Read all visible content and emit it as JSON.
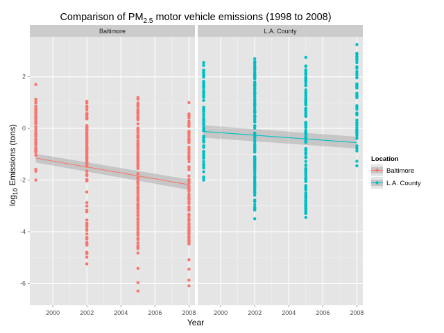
{
  "chart_data": {
    "type": "scatter",
    "title_prefix": "Comparison of PM",
    "title_subscript": "2.5",
    "title_suffix": " motor vehicle emissions (1998 to 2008)",
    "xlabel": "Year",
    "ylabel_prefix": "log",
    "ylabel_subscript": "10",
    "ylabel_suffix": " Emissions (tons)",
    "xlim": [
      1998.65,
      2008.35
    ],
    "ylim": [
      -6.85,
      3.55
    ],
    "x_ticks": [
      2000,
      2002,
      2004,
      2006,
      2008
    ],
    "x_tick_labels": [
      "2000",
      "2002",
      "2004",
      "2006",
      "2008"
    ],
    "y_ticks": [
      -6,
      -4,
      -2,
      0,
      2
    ],
    "y_tick_labels": [
      "-6",
      "-4",
      "-2",
      "0",
      "2"
    ],
    "grid": true,
    "legend": {
      "title": "Location",
      "position": "right",
      "entries": [
        {
          "label": "Baltimore",
          "color": "#F8766D"
        },
        {
          "label": "L.A. County",
          "color": "#00BFC4"
        }
      ]
    },
    "facets": [
      {
        "label": "Baltimore",
        "color": "#F8766D",
        "series": [
          {
            "x": 1999,
            "y_min": -2.0,
            "y_max": 1.7,
            "dense_min": -1.3,
            "dense_max": 1.05,
            "n": 42
          },
          {
            "x": 2002,
            "y_min": -5.25,
            "y_max": 1.05,
            "dense_min": -2.05,
            "dense_max": 1.0,
            "n": 80,
            "extra": [
              [
                -5.0,
                -3.5
              ]
            ]
          },
          {
            "x": 2005,
            "y_min": -6.3,
            "y_max": 1.2,
            "dense_min": -4.8,
            "dense_max": 1.0,
            "n": 120
          },
          {
            "x": 2008,
            "y_min": -6.1,
            "y_max": 1.0,
            "dense_min": -4.5,
            "dense_max": 0.6,
            "n": 100
          }
        ],
        "trend": {
          "x": [
            1999,
            2008
          ],
          "y": [
            -1.15,
            -2.18
          ],
          "ci_upper": [
            -0.98,
            -1.98
          ],
          "ci_lower": [
            -1.32,
            -2.38
          ]
        }
      },
      {
        "label": "L.A. County",
        "color": "#00BFC4",
        "series": [
          {
            "x": 1999,
            "y_min": -2.0,
            "y_max": 2.55,
            "dense_min": -1.55,
            "dense_max": 2.4,
            "n": 70
          },
          {
            "x": 2002,
            "y_min": -3.5,
            "y_max": 2.7,
            "dense_min": -3.2,
            "dense_max": 2.6,
            "n": 120
          },
          {
            "x": 2005,
            "y_min": -3.45,
            "y_max": 2.75,
            "dense_min": -3.3,
            "dense_max": 2.6,
            "n": 130
          },
          {
            "x": 2008,
            "y_min": -1.45,
            "y_max": 3.25,
            "dense_min": -0.95,
            "dense_max": 2.95,
            "n": 45
          }
        ],
        "trend": {
          "x": [
            1999,
            2008
          ],
          "y": [
            -0.12,
            -0.55
          ],
          "ci_upper": [
            0.12,
            -0.32
          ],
          "ci_lower": [
            -0.36,
            -0.78
          ]
        }
      }
    ]
  }
}
